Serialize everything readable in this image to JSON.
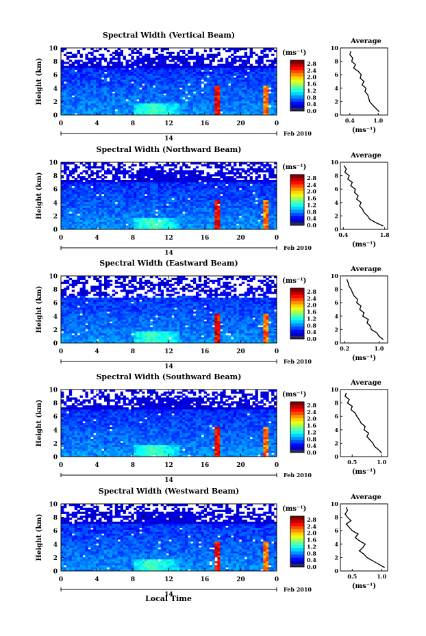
{
  "figure": {
    "xlabel": "Local Time",
    "date_label": "Feb 2010",
    "day_label": "14"
  },
  "chart_data": [
    {
      "type": "heatmap",
      "title": "Spectral Width (Vertical Beam)",
      "xlabel": "",
      "ylabel": "Height (km)",
      "x_ticks": [
        "0",
        "4",
        "8",
        "12",
        "16",
        "20",
        "0"
      ],
      "y_ticks": [
        "0",
        "2",
        "4",
        "6",
        "8",
        "10"
      ],
      "xlim": [
        0,
        24
      ],
      "ylim": [
        0,
        10
      ],
      "colorbar": {
        "unit": "(ms⁻¹)",
        "ticks": [
          "0.0",
          "0.4",
          "0.8",
          "1.2",
          "1.6",
          "2.0",
          "2.4",
          "2.8"
        ],
        "range": [
          0,
          3.0
        ]
      },
      "average_profile": {
        "title": "Average",
        "xlabel": "(ms⁻¹)",
        "x_ticks": [
          "0.4",
          "1.0"
        ],
        "xlim": [
          0.2,
          1.2
        ],
        "heights": [
          0.5,
          1,
          1.5,
          2,
          2.5,
          3,
          3.5,
          4,
          4.5,
          5,
          5.5,
          6,
          6.5,
          7,
          7.5,
          8,
          8.5,
          9,
          9.5
        ],
        "values": [
          1.02,
          0.95,
          0.88,
          0.82,
          0.8,
          0.78,
          0.72,
          0.74,
          0.66,
          0.7,
          0.62,
          0.64,
          0.58,
          0.48,
          0.52,
          0.44,
          0.46,
          0.4,
          0.42
        ]
      }
    },
    {
      "type": "heatmap",
      "title": "Spectral Width (Northward Beam)",
      "xlabel": "",
      "ylabel": "Height (km)",
      "x_ticks": [
        "0",
        "4",
        "8",
        "12",
        "16",
        "20",
        "0"
      ],
      "y_ticks": [
        "0",
        "2",
        "4",
        "6",
        "8",
        "10"
      ],
      "xlim": [
        0,
        24
      ],
      "ylim": [
        0,
        10
      ],
      "colorbar": {
        "unit": "(ms⁻¹)",
        "ticks": [
          "0.0",
          "0.4",
          "0.8",
          "1.2",
          "1.6",
          "2.0",
          "2.4",
          "2.8"
        ],
        "range": [
          0,
          3.0
        ]
      },
      "average_profile": {
        "title": "Average",
        "xlabel": "(ms⁻¹)",
        "x_ticks": [
          "0.4",
          "1.8"
        ],
        "xlim": [
          0.3,
          1.9
        ],
        "heights": [
          0.5,
          1,
          1.5,
          2,
          2.5,
          3,
          3.5,
          4,
          4.5,
          5,
          5.5,
          6,
          6.5,
          7,
          7.5,
          8,
          8.5,
          9,
          9.5
        ],
        "values": [
          1.75,
          1.5,
          1.3,
          1.22,
          1.1,
          1.05,
          0.95,
          1.0,
          0.85,
          0.9,
          0.78,
          0.8,
          0.65,
          0.7,
          0.55,
          0.6,
          0.45,
          0.5,
          0.42
        ]
      }
    },
    {
      "type": "heatmap",
      "title": "Spectral Width (Eastward Beam)",
      "xlabel": "",
      "ylabel": "Height (km)",
      "x_ticks": [
        "0",
        "4",
        "8",
        "12",
        "16",
        "20",
        "0"
      ],
      "y_ticks": [
        "0",
        "2",
        "4",
        "6",
        "8",
        "10"
      ],
      "xlim": [
        0,
        24
      ],
      "ylim": [
        0,
        10
      ],
      "colorbar": {
        "unit": "(ms⁻¹)",
        "ticks": [
          "0.0",
          "0.4",
          "0.8",
          "1.2",
          "1.6",
          "2.0",
          "2.4",
          "2.8"
        ],
        "range": [
          0,
          3.0
        ]
      },
      "average_profile": {
        "title": "Average",
        "xlabel": "(ms⁻¹)",
        "x_ticks": [
          "0.2",
          "1.0"
        ],
        "xlim": [
          0.1,
          1.2
        ],
        "heights": [
          0.5,
          1,
          1.5,
          2,
          2.5,
          3,
          3.5,
          4,
          4.5,
          5,
          5.5,
          6,
          6.5,
          7,
          7.5,
          8,
          8.5,
          9,
          9.5
        ],
        "values": [
          1.1,
          1.0,
          0.95,
          0.82,
          0.8,
          0.72,
          0.75,
          0.62,
          0.65,
          0.55,
          0.58,
          0.48,
          0.5,
          0.42,
          0.38,
          0.35,
          0.3,
          0.28,
          0.25
        ]
      }
    },
    {
      "type": "heatmap",
      "title": "Spectral Width (Southward Beam)",
      "xlabel": "",
      "ylabel": "Height (km)",
      "x_ticks": [
        "0",
        "4",
        "8",
        "12",
        "16",
        "20",
        "0"
      ],
      "y_ticks": [
        "0",
        "2",
        "4",
        "6",
        "8",
        "10"
      ],
      "xlim": [
        0,
        24
      ],
      "ylim": [
        0,
        10
      ],
      "colorbar": {
        "unit": "(ms⁻¹)",
        "ticks": [
          "0.0",
          "0.4",
          "0.8",
          "1.2",
          "1.6",
          "2.0",
          "2.4",
          "2.8"
        ],
        "range": [
          0,
          3.0
        ]
      },
      "average_profile": {
        "title": "Average",
        "xlabel": "(ms⁻¹)",
        "x_ticks": [
          "0.5",
          "1.0"
        ],
        "xlim": [
          0.3,
          1.1
        ],
        "heights": [
          0.5,
          1,
          1.5,
          2,
          2.5,
          3,
          3.5,
          4,
          4.5,
          5,
          5.5,
          6,
          6.5,
          7,
          7.5,
          8,
          8.5,
          9,
          9.5
        ],
        "values": [
          1.0,
          0.95,
          0.88,
          0.85,
          0.8,
          0.75,
          0.78,
          0.7,
          0.72,
          0.65,
          0.62,
          0.58,
          0.55,
          0.48,
          0.5,
          0.42,
          0.45,
          0.38,
          0.4
        ]
      }
    },
    {
      "type": "heatmap",
      "title": "Spectral Width (Westward Beam)",
      "xlabel": "Local Time",
      "ylabel": "Height (km)",
      "x_ticks": [
        "0",
        "4",
        "8",
        "12",
        "16",
        "20",
        "0"
      ],
      "y_ticks": [
        "0",
        "2",
        "4",
        "6",
        "8",
        "10"
      ],
      "xlim": [
        0,
        24
      ],
      "ylim": [
        0,
        10
      ],
      "colorbar": {
        "unit": "(ms⁻¹)",
        "ticks": [
          "0.0",
          "0.4",
          "0.8",
          "1.2",
          "1.6",
          "2.0",
          "2.4",
          "2.8"
        ],
        "range": [
          0,
          3.0
        ]
      },
      "average_profile": {
        "title": "Average",
        "xlabel": "(ms⁻¹)",
        "x_ticks": [
          "0.5",
          "1.0"
        ],
        "xlim": [
          0.3,
          1.1
        ],
        "heights": [
          0.5,
          1,
          1.5,
          2,
          2.5,
          3,
          3.5,
          4,
          4.5,
          5,
          5.5,
          6,
          6.5,
          7,
          7.5,
          8,
          8.5,
          9,
          9.5
        ],
        "values": [
          1.05,
          0.95,
          0.85,
          0.75,
          0.7,
          0.62,
          0.68,
          0.72,
          0.62,
          0.55,
          0.6,
          0.5,
          0.45,
          0.4,
          0.48,
          0.42,
          0.38,
          0.42,
          0.4
        ]
      }
    }
  ]
}
